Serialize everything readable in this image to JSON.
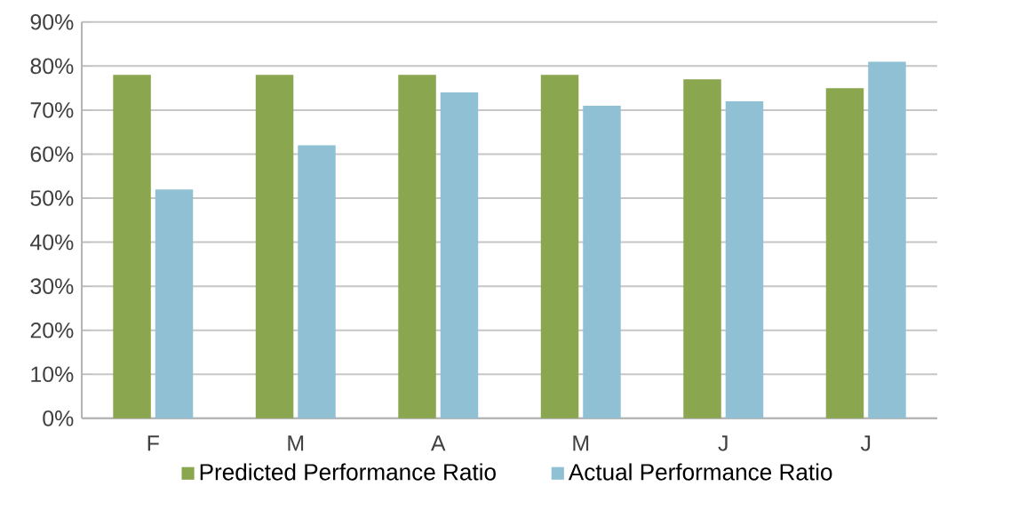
{
  "chart_data": {
    "type": "bar",
    "categories": [
      "F",
      "M",
      "A",
      "M",
      "J",
      "J"
    ],
    "series": [
      {
        "name": "Predicted Performance Ratio",
        "color": "#8aa64e",
        "values": [
          78,
          78,
          78,
          78,
          77,
          75
        ]
      },
      {
        "name": "Actual Performance Ratio",
        "color": "#8fc0d4",
        "values": [
          52,
          62,
          74,
          71,
          72,
          81
        ]
      }
    ],
    "ylim": [
      0,
      90
    ],
    "yticks": [
      {
        "value": 0,
        "label": "0%"
      },
      {
        "value": 10,
        "label": "10%"
      },
      {
        "value": 20,
        "label": "20%"
      },
      {
        "value": 30,
        "label": "30%"
      },
      {
        "value": 40,
        "label": "40%"
      },
      {
        "value": 50,
        "label": "50%"
      },
      {
        "value": 60,
        "label": "60%"
      },
      {
        "value": 70,
        "label": "70%"
      },
      {
        "value": 80,
        "label": "80%"
      },
      {
        "value": 90,
        "label": "90%"
      }
    ],
    "grid": "y",
    "legend": "bottom"
  }
}
